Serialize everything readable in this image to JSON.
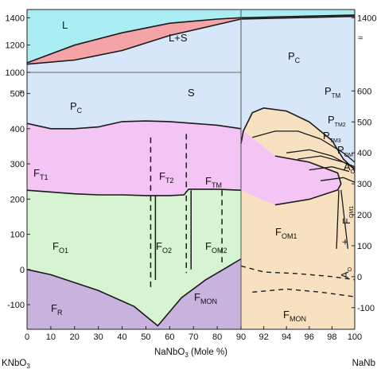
{
  "chart_data": {
    "type": "phase-diagram",
    "title": "",
    "xlabel": {
      "pre": "NaNbO",
      "sub": "3",
      "post": " (Mole %)"
    },
    "x_end_labels": {
      "left": {
        "pre": "KNbO",
        "sub": "3"
      },
      "right": {
        "pre": "NaNb",
        "sub": ""
      }
    },
    "xlim": [
      0,
      100
    ],
    "x_ticks": [
      0,
      10,
      20,
      30,
      40,
      50,
      60,
      70,
      80,
      90,
      92,
      94,
      96,
      98,
      100
    ],
    "x_tick_labels": [
      "0",
      "10",
      "20",
      "30",
      "40",
      "50",
      "60",
      "70",
      "80",
      "90",
      "92",
      "94",
      "96",
      "98",
      "100"
    ],
    "left_axis": {
      "upper_ticks": [
        1000,
        1200,
        1400
      ],
      "lower_ticks": [
        -100,
        0,
        100,
        200,
        300,
        400,
        500
      ],
      "lower_max": 560,
      "axis_break": true
    },
    "right_axis": {
      "upper_ticks": [
        1400
      ],
      "lower_ticks": [
        -100,
        0,
        100,
        200,
        300,
        400,
        500,
        600
      ],
      "lower_max": 660,
      "axis_break": true
    },
    "colors": {
      "liquid": "#aaeef4",
      "two_phase": "#f4a3a6",
      "solid": "#d7e6f8",
      "tetragonal": "#f3c4f4",
      "orthorhombic": "#d6f3d2",
      "rhombohedral": "#c8b3de",
      "na_rich_orthorhombic": "#f7e1c1",
      "lines": "#1a1a1a"
    },
    "boundaries": {
      "liquidus": [
        [
          0,
          1070
        ],
        [
          20,
          1200
        ],
        [
          40,
          1290
        ],
        [
          60,
          1360
        ],
        [
          80,
          1390
        ],
        [
          90,
          1400
        ],
        [
          100,
          1420
        ]
      ],
      "solidus": [
        [
          0,
          1060
        ],
        [
          20,
          1090
        ],
        [
          40,
          1160
        ],
        [
          60,
          1270
        ],
        [
          80,
          1350
        ],
        [
          90,
          1390
        ],
        [
          100,
          1410
        ]
      ],
      "cubic_tetragonal": [
        [
          0,
          415
        ],
        [
          10,
          400
        ],
        [
          20,
          400
        ],
        [
          30,
          405
        ],
        [
          40,
          420
        ],
        [
          50,
          422
        ],
        [
          60,
          420
        ],
        [
          70,
          415
        ],
        [
          80,
          410
        ],
        [
          90,
          400
        ]
      ],
      "tetragonal_orthorhombic": [
        [
          0,
          225
        ],
        [
          10,
          220
        ],
        [
          20,
          215
        ],
        [
          30,
          212
        ],
        [
          40,
          212
        ],
        [
          50,
          210
        ],
        [
          60,
          210
        ],
        [
          66,
          212
        ],
        [
          68,
          228
        ],
        [
          80,
          228
        ],
        [
          90,
          225
        ]
      ],
      "orthorhombic_rhombohedral": [
        [
          0,
          0
        ],
        [
          10,
          -15
        ],
        [
          30,
          -60
        ],
        [
          45,
          -105
        ],
        [
          55,
          -160
        ],
        [
          65,
          -80
        ],
        [
          75,
          -30
        ],
        [
          85,
          10
        ],
        [
          90,
          30
        ]
      ]
    },
    "phase_labels": [
      {
        "pre": "L",
        "sub": ""
      },
      {
        "pre": "L+S",
        "sub": ""
      },
      {
        "pre": "S",
        "sub": ""
      },
      {
        "pre": "P",
        "sub": "C"
      },
      {
        "pre": "P",
        "sub": "C"
      },
      {
        "pre": "F",
        "sub": "T1"
      },
      {
        "pre": "F",
        "sub": "T2"
      },
      {
        "pre": "F",
        "sub": "TM"
      },
      {
        "pre": "F",
        "sub": "O1"
      },
      {
        "pre": "F",
        "sub": "O2"
      },
      {
        "pre": "F",
        "sub": "OM2"
      },
      {
        "pre": "F",
        "sub": "R"
      },
      {
        "pre": "F",
        "sub": "MON"
      },
      {
        "pre": "P",
        "sub": "TM"
      },
      {
        "pre": "P",
        "sub": "TM2"
      },
      {
        "pre": "P",
        "sub": "TM3"
      },
      {
        "pre": "P",
        "sub": "OM"
      },
      {
        "pre": "A",
        "sub": "O"
      },
      {
        "pre": "F",
        "sub": "OM1"
      },
      {
        "pre": "F",
        "sub": "MON"
      },
      {
        "pre": "A",
        "sub": "O"
      },
      {
        "pre": "+",
        "sub": ""
      },
      {
        "pre": "F",
        "sub": "OM1"
      }
    ]
  }
}
